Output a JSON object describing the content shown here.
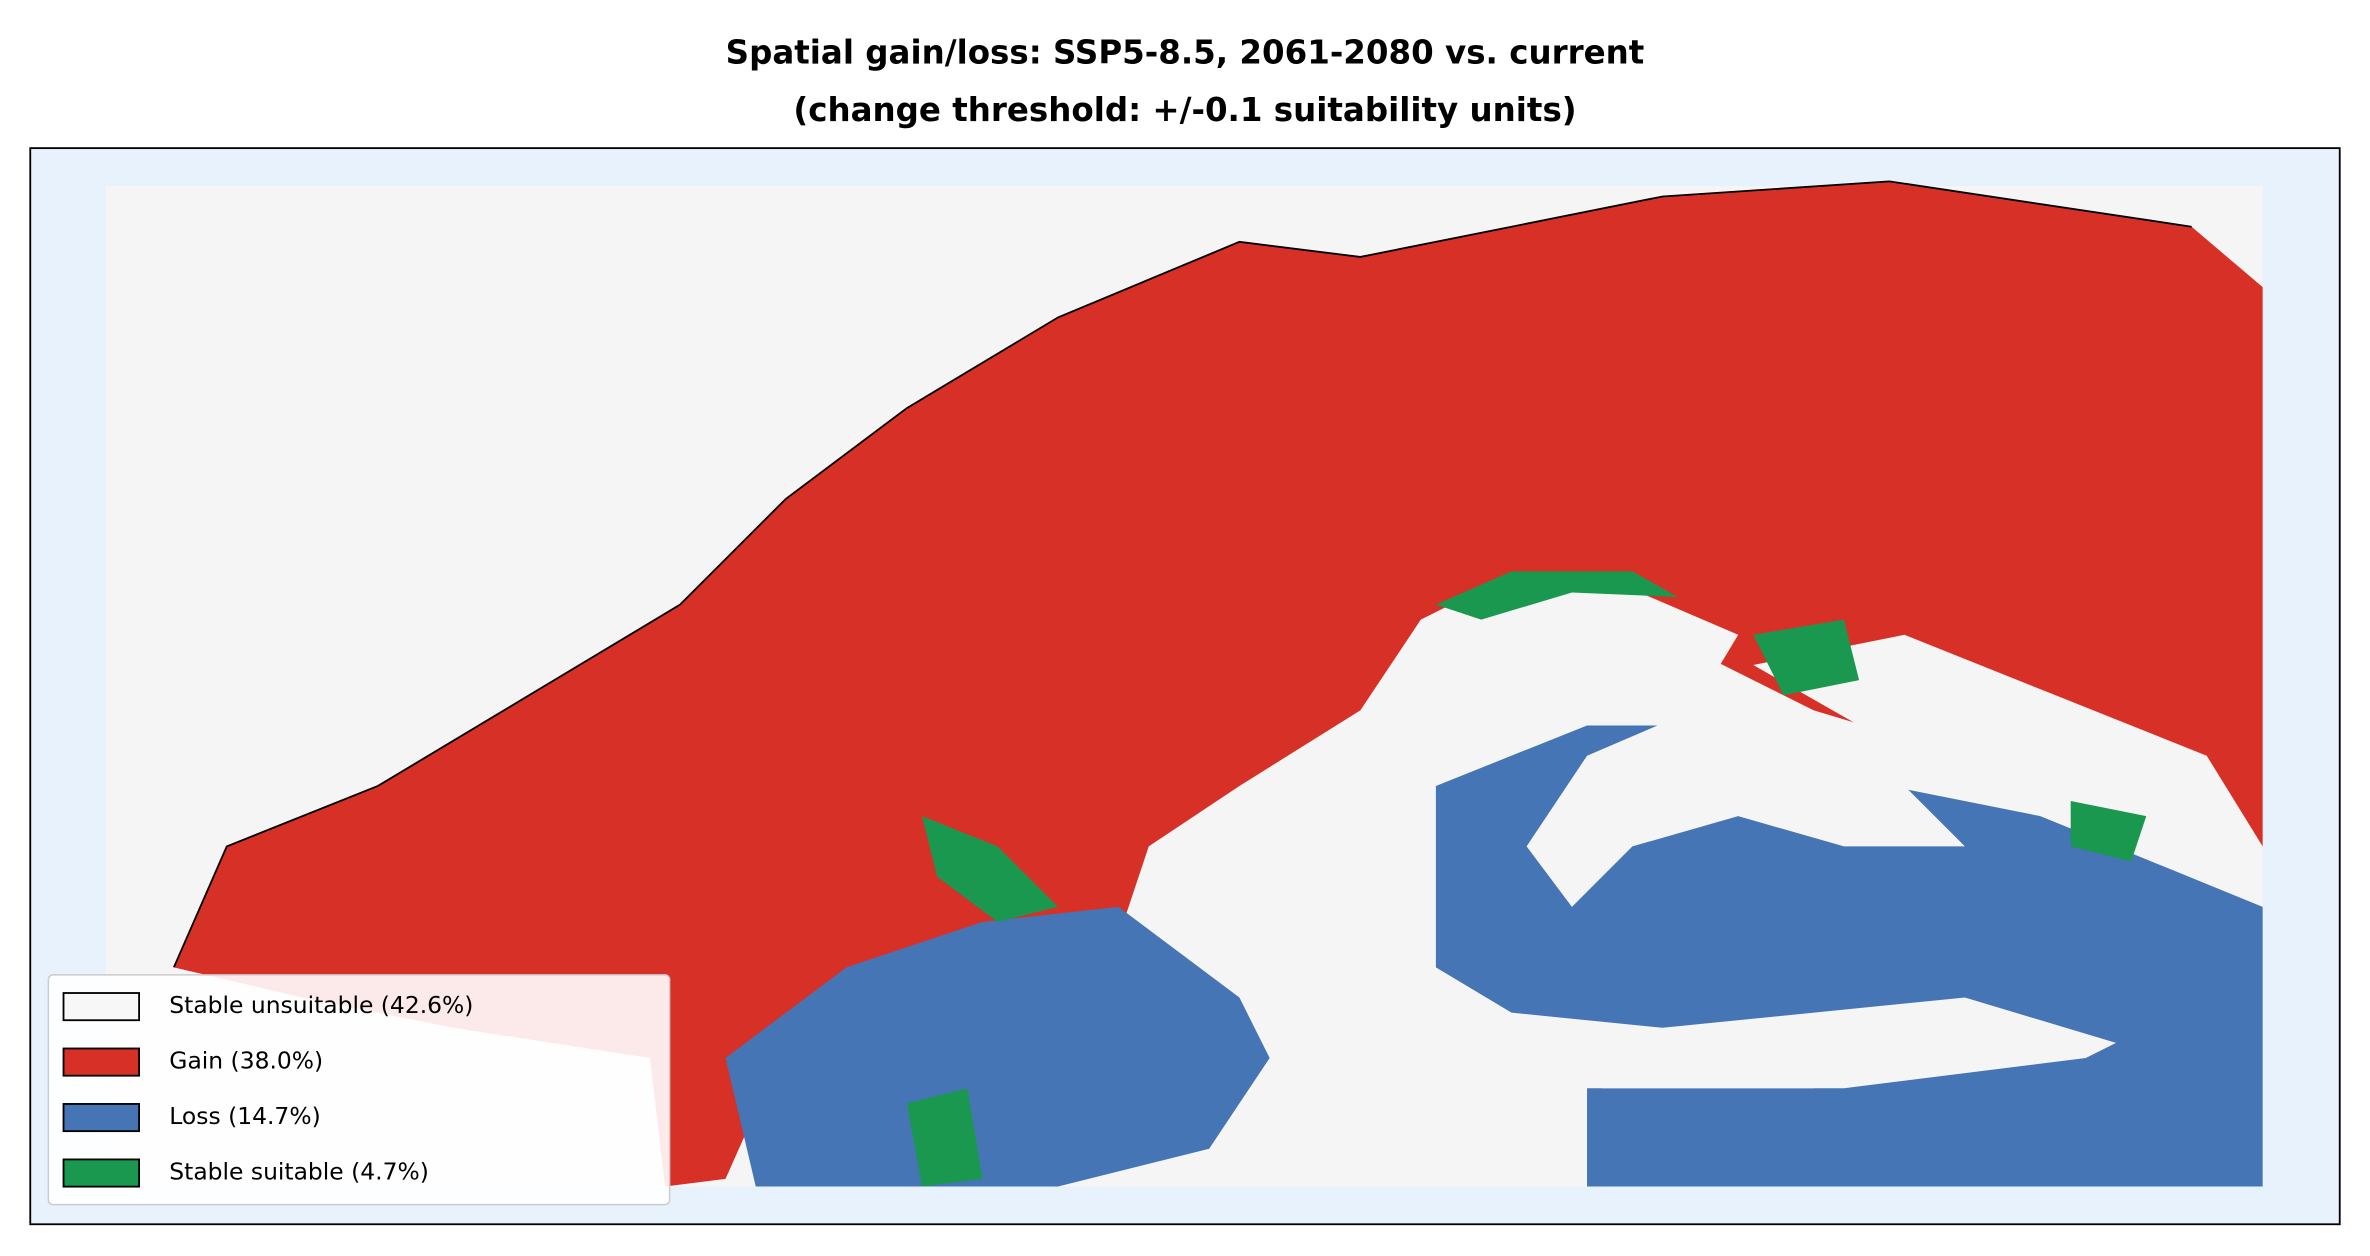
{
  "title_lines": [
    "Spatial gain/loss: SSP5-8.5, 2061-2080 vs. current",
    "(change threshold: +/-0.1 suitability units)"
  ],
  "legend": [
    {
      "label": "Stable unsuitable (42.6%)",
      "color": "#f7f7f7"
    },
    {
      "label": "Gain (38.0%)",
      "color": "#d73027"
    },
    {
      "label": "Loss (14.7%)",
      "color": "#4575b4"
    },
    {
      "label": "Stable suitable (4.7%)",
      "color": "#1a9850"
    }
  ]
}
